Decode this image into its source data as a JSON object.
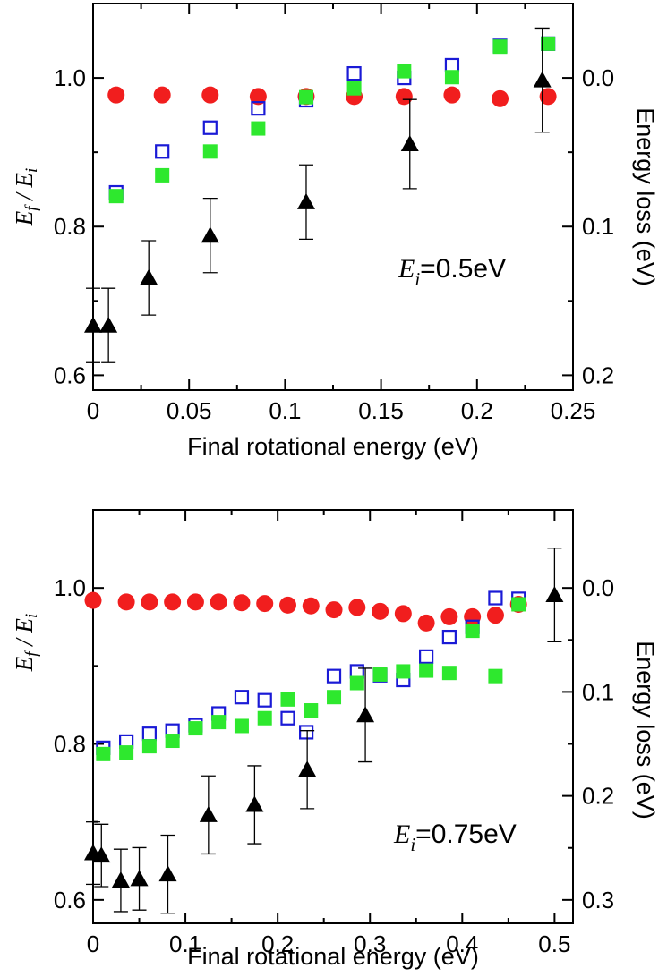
{
  "chart_data": [
    {
      "type": "scatter",
      "title": "",
      "xlabel": "Final rotational energy (eV)",
      "ylabel": "E_f / E_i",
      "ylabel_main": "E",
      "ylabel_sub1": "f",
      "ylabel_sep": " / ",
      "ylabel_sub2": "i",
      "ylabel_right": "Energy loss (eV)",
      "annotation_main": "E",
      "annotation_sub": "i",
      "annotation_rest": "=0.5eV",
      "xlim": [
        0,
        0.25
      ],
      "ylim": [
        0.58,
        1.1
      ],
      "right_ylim": [
        0.21,
        -0.05
      ],
      "x_ticks": [
        0,
        0.05,
        0.1,
        0.15,
        0.2,
        0.25
      ],
      "x_tick_labels": [
        "0",
        "0.05",
        "0.1",
        "0.15",
        "0.2",
        "0.25"
      ],
      "y_ticks": [
        0.6,
        0.8,
        1.0
      ],
      "y_tick_labels": [
        "0.6",
        "0.8",
        "1.0"
      ],
      "right_ticks": [
        0.0,
        0.1,
        0.2
      ],
      "right_tick_labels": [
        "0.0",
        "0.1",
        "0.2"
      ],
      "series": [
        {
          "name": "red-circles",
          "marker": "circle",
          "color": "#f11e1e",
          "points": [
            [
              0.012,
              0.977
            ],
            [
              0.036,
              0.977
            ],
            [
              0.061,
              0.977
            ],
            [
              0.086,
              0.975
            ],
            [
              0.111,
              0.975
            ],
            [
              0.136,
              0.975
            ],
            [
              0.162,
              0.975
            ],
            [
              0.187,
              0.977
            ],
            [
              0.212,
              0.972
            ],
            [
              0.237,
              0.975
            ]
          ]
        },
        {
          "name": "blue-open-squares",
          "marker": "open-square",
          "color": "#1a1ad6",
          "points": [
            [
              0.012,
              0.846
            ],
            [
              0.036,
              0.901
            ],
            [
              0.061,
              0.933
            ],
            [
              0.086,
              0.959
            ],
            [
              0.111,
              0.97
            ],
            [
              0.136,
              1.006
            ],
            [
              0.162,
              1.0
            ],
            [
              0.187,
              1.017
            ],
            [
              0.212,
              1.043
            ],
            [
              0.237,
              1.046
            ]
          ]
        },
        {
          "name": "green-filled-squares",
          "marker": "filled-square",
          "color": "#2ee82e",
          "points": [
            [
              0.012,
              0.841
            ],
            [
              0.036,
              0.869
            ],
            [
              0.061,
              0.901
            ],
            [
              0.086,
              0.932
            ],
            [
              0.111,
              0.974
            ],
            [
              0.136,
              0.986
            ],
            [
              0.162,
              1.009
            ],
            [
              0.187,
              1.001
            ],
            [
              0.212,
              1.042
            ],
            [
              0.237,
              1.046
            ]
          ]
        },
        {
          "name": "black-triangles",
          "marker": "triangle",
          "color": "#000000",
          "points": [
            [
              0.0,
              0.667
            ],
            [
              0.008,
              0.667
            ],
            [
              0.029,
              0.731
            ],
            [
              0.061,
              0.788
            ],
            [
              0.111,
              0.833
            ],
            [
              0.165,
              0.911
            ],
            [
              0.234,
              0.997
            ]
          ],
          "errors": [
            0.05,
            0.05,
            0.05,
            0.05,
            0.05,
            0.06,
            0.07
          ]
        }
      ]
    },
    {
      "type": "scatter",
      "title": "",
      "xlabel": "Final rotational energy (eV)",
      "ylabel": "E_f / E_i",
      "ylabel_main": "E",
      "ylabel_sub1": "f",
      "ylabel_sep": " / ",
      "ylabel_sub2": "i",
      "ylabel_right": "Energy loss (eV)",
      "annotation_main": "E",
      "annotation_sub": "i",
      "annotation_rest": "=0.75eV",
      "xlim": [
        0,
        0.52
      ],
      "ylim": [
        0.57,
        1.1
      ],
      "right_ylim": [
        0.3225,
        -0.075
      ],
      "x_ticks": [
        0,
        0.1,
        0.2,
        0.3,
        0.4,
        0.5
      ],
      "x_tick_labels": [
        "0",
        "0.1",
        "0.2",
        "0.3",
        "0.4",
        "0.5"
      ],
      "y_ticks": [
        0.6,
        0.8,
        1.0
      ],
      "y_tick_labels": [
        "0.6",
        "0.8",
        "1.0"
      ],
      "right_ticks": [
        0.0,
        0.1,
        0.2,
        0.3
      ],
      "right_tick_labels": [
        "0.0",
        "0.1",
        "0.2",
        "0.3"
      ],
      "series": [
        {
          "name": "red-circles",
          "marker": "circle",
          "color": "#f11e1e",
          "points": [
            [
              0.0,
              0.984
            ],
            [
              0.036,
              0.982
            ],
            [
              0.061,
              0.982
            ],
            [
              0.086,
              0.982
            ],
            [
              0.111,
              0.982
            ],
            [
              0.136,
              0.982
            ],
            [
              0.161,
              0.981
            ],
            [
              0.186,
              0.98
            ],
            [
              0.211,
              0.978
            ],
            [
              0.236,
              0.977
            ],
            [
              0.261,
              0.972
            ],
            [
              0.286,
              0.975
            ],
            [
              0.311,
              0.97
            ],
            [
              0.336,
              0.967
            ],
            [
              0.361,
              0.955
            ],
            [
              0.386,
              0.963
            ],
            [
              0.411,
              0.963
            ],
            [
              0.436,
              0.965
            ],
            [
              0.461,
              0.979
            ]
          ]
        },
        {
          "name": "blue-open-squares",
          "marker": "open-square",
          "color": "#1a1ad6",
          "points": [
            [
              0.011,
              0.795
            ],
            [
              0.036,
              0.803
            ],
            [
              0.061,
              0.813
            ],
            [
              0.086,
              0.817
            ],
            [
              0.111,
              0.824
            ],
            [
              0.136,
              0.839
            ],
            [
              0.161,
              0.86
            ],
            [
              0.186,
              0.856
            ],
            [
              0.211,
              0.833
            ],
            [
              0.231,
              0.815
            ],
            [
              0.261,
              0.887
            ],
            [
              0.286,
              0.893
            ],
            [
              0.311,
              0.888
            ],
            [
              0.336,
              0.882
            ],
            [
              0.361,
              0.912
            ],
            [
              0.386,
              0.937
            ],
            [
              0.411,
              0.95
            ],
            [
              0.436,
              0.987
            ],
            [
              0.461,
              0.986
            ]
          ]
        },
        {
          "name": "green-filled-squares",
          "marker": "filled-square",
          "color": "#2ee82e",
          "points": [
            [
              0.011,
              0.787
            ],
            [
              0.036,
              0.789
            ],
            [
              0.061,
              0.797
            ],
            [
              0.086,
              0.804
            ],
            [
              0.111,
              0.82
            ],
            [
              0.136,
              0.828
            ],
            [
              0.161,
              0.823
            ],
            [
              0.186,
              0.833
            ],
            [
              0.211,
              0.857
            ],
            [
              0.236,
              0.843
            ],
            [
              0.261,
              0.86
            ],
            [
              0.286,
              0.878
            ],
            [
              0.311,
              0.889
            ],
            [
              0.336,
              0.893
            ],
            [
              0.361,
              0.894
            ],
            [
              0.386,
              0.891
            ],
            [
              0.411,
              0.945
            ],
            [
              0.436,
              0.887
            ],
            [
              0.461,
              0.979
            ]
          ]
        },
        {
          "name": "black-triangles",
          "marker": "triangle",
          "color": "#000000",
          "points": [
            [
              0.0,
              0.66
            ],
            [
              0.009,
              0.657
            ],
            [
              0.03,
              0.625
            ],
            [
              0.05,
              0.627
            ],
            [
              0.081,
              0.633
            ],
            [
              0.125,
              0.709
            ],
            [
              0.175,
              0.722
            ],
            [
              0.232,
              0.767
            ],
            [
              0.295,
              0.837
            ],
            [
              0.5,
              0.991
            ]
          ],
          "errors": [
            0.04,
            0.04,
            0.04,
            0.04,
            0.05,
            0.05,
            0.05,
            0.05,
            0.06,
            0.06
          ]
        }
      ]
    }
  ]
}
